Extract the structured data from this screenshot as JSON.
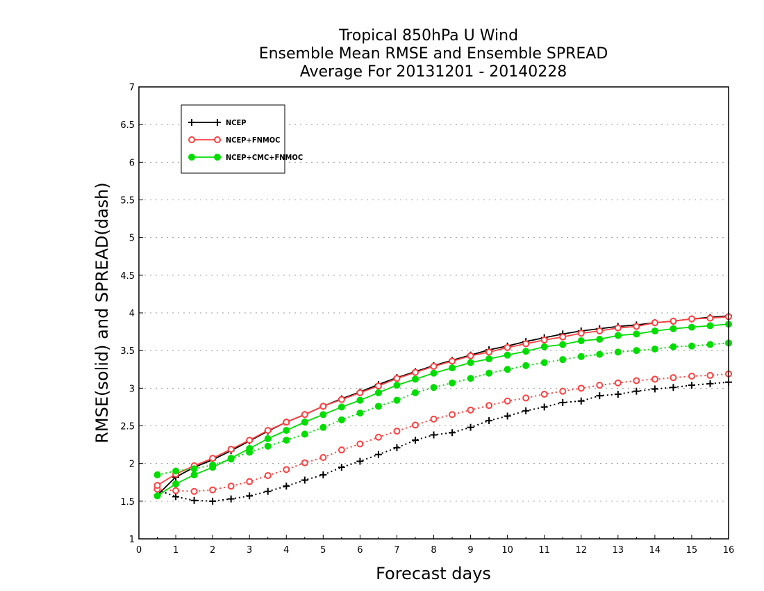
{
  "chart_data": {
    "type": "line",
    "title_lines": [
      "Tropical 850hPa U Wind",
      "Ensemble Mean RMSE and Ensemble SPREAD",
      "Average For 20131201 - 20140228"
    ],
    "xlabel": "Forecast days",
    "ylabel": "RMSE(solid) and SPREAD(dash)",
    "xlim": [
      0,
      16
    ],
    "ylim": [
      1,
      7
    ],
    "xticks": [
      0,
      1,
      2,
      3,
      4,
      5,
      6,
      7,
      8,
      9,
      10,
      11,
      12,
      13,
      14,
      15,
      16
    ],
    "yticks": [
      1,
      1.5,
      2,
      2.5,
      3,
      3.5,
      4,
      4.5,
      5,
      5.5,
      6,
      6.5,
      7
    ],
    "ytick_labels": [
      "1",
      "1.5",
      "2",
      "2.5",
      "3",
      "3.5",
      "4",
      "4.5",
      "5",
      "5.5",
      "6",
      "6.5",
      "7"
    ],
    "grid": "horizontal dotted",
    "legend_position": "top-left",
    "x": [
      0.5,
      1,
      1.5,
      2,
      2.5,
      3,
      3.5,
      4,
      4.5,
      5,
      5.5,
      6,
      6.5,
      7,
      7.5,
      8,
      8.5,
      9,
      9.5,
      10,
      10.5,
      11,
      11.5,
      12,
      12.5,
      13,
      13.5,
      14,
      14.5,
      15,
      15.5,
      16
    ],
    "series": [
      {
        "name": "NCEP",
        "color": "#000000",
        "marker": "plus",
        "rmse": [
          1.58,
          1.82,
          1.95,
          2.05,
          2.17,
          2.3,
          2.43,
          2.55,
          2.65,
          2.76,
          2.86,
          2.95,
          3.05,
          3.14,
          3.22,
          3.3,
          3.37,
          3.44,
          3.51,
          3.56,
          3.62,
          3.67,
          3.72,
          3.76,
          3.79,
          3.82,
          3.84,
          3.87,
          3.89,
          3.92,
          3.94,
          3.96
        ],
        "spread": [
          1.65,
          1.56,
          1.51,
          1.5,
          1.53,
          1.57,
          1.63,
          1.7,
          1.78,
          1.85,
          1.95,
          2.03,
          2.12,
          2.21,
          2.31,
          2.38,
          2.41,
          2.48,
          2.57,
          2.63,
          2.7,
          2.75,
          2.81,
          2.83,
          2.9,
          2.92,
          2.96,
          2.99,
          3.01,
          3.04,
          3.06,
          3.08
        ]
      },
      {
        "name": "NCEP+FNMOC",
        "color": "#ff4040",
        "marker": "open-circle",
        "rmse": [
          1.71,
          1.86,
          1.97,
          2.07,
          2.19,
          2.31,
          2.44,
          2.55,
          2.65,
          2.76,
          2.85,
          2.94,
          3.03,
          3.13,
          3.21,
          3.29,
          3.36,
          3.43,
          3.48,
          3.54,
          3.59,
          3.64,
          3.68,
          3.73,
          3.76,
          3.8,
          3.82,
          3.87,
          3.89,
          3.92,
          3.93,
          3.95
        ],
        "spread": [
          1.66,
          1.64,
          1.63,
          1.65,
          1.7,
          1.76,
          1.84,
          1.92,
          2.01,
          2.08,
          2.18,
          2.26,
          2.35,
          2.43,
          2.51,
          2.59,
          2.65,
          2.71,
          2.77,
          2.83,
          2.87,
          2.92,
          2.96,
          3.0,
          3.04,
          3.07,
          3.1,
          3.12,
          3.14,
          3.16,
          3.17,
          3.19
        ]
      },
      {
        "name": "NCEP+CMC+FNMOC",
        "color": "#00dd00",
        "marker": "filled-circle",
        "rmse": [
          1.57,
          1.73,
          1.85,
          1.95,
          2.07,
          2.2,
          2.33,
          2.44,
          2.55,
          2.65,
          2.75,
          2.84,
          2.94,
          3.04,
          3.12,
          3.2,
          3.27,
          3.34,
          3.39,
          3.44,
          3.49,
          3.55,
          3.58,
          3.63,
          3.65,
          3.7,
          3.72,
          3.76,
          3.79,
          3.81,
          3.83,
          3.85
        ],
        "spread": [
          1.85,
          1.9,
          1.93,
          1.98,
          2.06,
          2.15,
          2.23,
          2.31,
          2.39,
          2.48,
          2.58,
          2.67,
          2.76,
          2.84,
          2.94,
          3.01,
          3.07,
          3.13,
          3.2,
          3.25,
          3.3,
          3.34,
          3.38,
          3.42,
          3.45,
          3.48,
          3.5,
          3.52,
          3.55,
          3.56,
          3.58,
          3.6
        ]
      }
    ]
  }
}
